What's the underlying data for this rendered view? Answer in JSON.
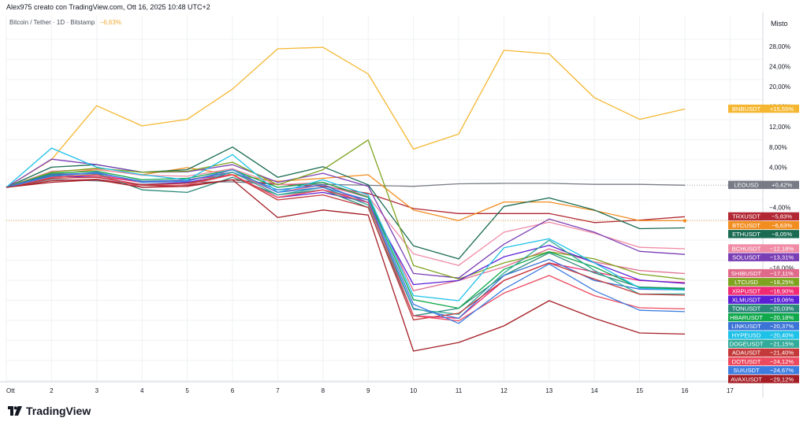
{
  "header": "Alex975 creato con TradingView.com, Ott 16, 2025 10:48 UTC+2",
  "legend": {
    "symbol": "Bitcoin / Tether · 1D · Bitstamp",
    "change": "−6,63%"
  },
  "axis_title": "Misto",
  "brand": "TradingView",
  "chart_data": {
    "type": "line",
    "x_labels": [
      "Ott",
      "2",
      "3",
      "4",
      "5",
      "6",
      "7",
      "8",
      "9",
      "10",
      "11",
      "12",
      "13",
      "14",
      "15",
      "16",
      "17"
    ],
    "x": [
      1,
      2,
      3,
      4,
      5,
      6,
      7,
      8,
      9,
      10,
      11,
      12,
      13,
      14,
      15,
      16
    ],
    "y_unit": "%",
    "ylim": [
      -33,
      33
    ],
    "y_ticks": [
      {
        "v": 28,
        "label": "28,00%"
      },
      {
        "v": 24,
        "label": "24,00%"
      },
      {
        "v": 20,
        "label": "20,00%"
      },
      {
        "v": 16,
        "label": "16,00%"
      },
      {
        "v": 12,
        "label": "12,00%"
      },
      {
        "v": 8,
        "label": "8,00%"
      },
      {
        "v": 4,
        "label": "4,00%"
      },
      {
        "v": -4,
        "label": "−4,00%"
      },
      {
        "v": -16,
        "label": "−16,00%"
      }
    ],
    "grid": true,
    "series": [
      {
        "name": "BNBUSDT",
        "label": "+15,55%",
        "color": "#f5b731",
        "values": [
          0,
          5.5,
          16.2,
          12.2,
          13.5,
          19.5,
          27.5,
          27.8,
          22.5,
          7.6,
          10.6,
          27.2,
          26.5,
          17.8,
          13.5,
          15.55
        ]
      },
      {
        "name": "LEOUSD",
        "label": "+0,42%",
        "color": "#787b86",
        "values": [
          0,
          1.6,
          1.3,
          0.6,
          1.0,
          1.1,
          0.6,
          0.6,
          0.4,
          0.2,
          0.7,
          0.8,
          0.8,
          0.6,
          0.6,
          0.42
        ]
      },
      {
        "name": "TRXUSDT",
        "label": "−5,83%",
        "color": "#b22833",
        "values": [
          0,
          1.3,
          1.6,
          0.4,
          0.4,
          1.5,
          0.6,
          0.2,
          -1.2,
          -4.2,
          -5.2,
          -5.2,
          -5.2,
          -7.0,
          -6.5,
          -5.83
        ]
      },
      {
        "name": "BTCUSDT",
        "label": "−6,63%",
        "color": "#f28d20",
        "values": [
          0,
          2.6,
          3.5,
          2.5,
          3.9,
          2.5,
          1.2,
          1.8,
          2.5,
          -4.5,
          -6.6,
          -2.9,
          -2.9,
          -4.6,
          -6.6,
          -6.63
        ]
      },
      {
        "name": "ETHUSDT",
        "label": "−8,05%",
        "color": "#1a6b52",
        "values": [
          0,
          4.0,
          4.5,
          3.0,
          3.5,
          8.0,
          2.0,
          4.1,
          0.5,
          -11.6,
          -14.2,
          -3.8,
          -2.1,
          -4.5,
          -8.2,
          -8.05
        ]
      },
      {
        "name": "BCHUSDT",
        "label": "−12,18%",
        "color": "#f08ba5",
        "values": [
          0,
          3.2,
          3.6,
          2.4,
          2.2,
          3.7,
          0.5,
          1.0,
          -1.8,
          -13.2,
          -15.5,
          -8.9,
          -6.9,
          -9.1,
          -11.9,
          -12.18
        ]
      },
      {
        "name": "SOLUSDT",
        "label": "−13,31%",
        "color": "#7b3fb5",
        "values": [
          0,
          5.6,
          4.5,
          3.0,
          3.1,
          4.5,
          1.0,
          2.8,
          0.2,
          -17.1,
          -18.0,
          -11.3,
          -6.3,
          -8.9,
          -12.7,
          -13.31
        ]
      },
      {
        "name": "SHIBUSDT",
        "label": "−17,11%",
        "color": "#e06a8a",
        "values": [
          0,
          2.5,
          2.2,
          1.0,
          1.5,
          3.0,
          -1.0,
          0.5,
          -2.0,
          -20.5,
          -18.5,
          -15.8,
          -12.2,
          -14.8,
          -16.5,
          -17.11
        ]
      },
      {
        "name": "LTCUSD",
        "label": "−18,25%",
        "color": "#7ea31f",
        "values": [
          0,
          3.0,
          3.8,
          3.0,
          3.2,
          5.0,
          0.5,
          3.5,
          9.4,
          -15.5,
          -18.2,
          -15.0,
          -12.8,
          -14.2,
          -17.2,
          -18.25
        ]
      },
      {
        "name": "XRPUSDT",
        "label": "−18,90%",
        "color": "#f02a73",
        "values": [
          0,
          2.0,
          2.5,
          1.0,
          1.5,
          2.5,
          -2.0,
          -0.5,
          -2.5,
          -25.5,
          -26.0,
          -18.5,
          -15.0,
          -16.8,
          -18.5,
          -18.9
        ]
      },
      {
        "name": "XLMUSDT",
        "label": "−19,06%",
        "color": "#5b1fd6",
        "values": [
          0,
          2.2,
          2.0,
          0.5,
          1.0,
          2.5,
          -2.0,
          -1.0,
          -3.0,
          -19.3,
          -18.5,
          -13.8,
          -11.5,
          -15.0,
          -18.4,
          -19.06
        ]
      },
      {
        "name": "TONUSDT",
        "label": "−20,03%",
        "color": "#2b8a7a",
        "values": [
          0,
          2.4,
          2.8,
          -0.5,
          -1.0,
          2.0,
          -1.5,
          -0.5,
          -4.0,
          -25.5,
          -24.0,
          -17.5,
          -13.0,
          -17.0,
          -19.8,
          -20.03
        ]
      },
      {
        "name": "HBARUSDT",
        "label": "−20,18%",
        "color": "#0fa84a",
        "values": [
          0,
          2.8,
          3.2,
          1.5,
          1.8,
          3.5,
          0.0,
          1.0,
          -2.0,
          -22.3,
          -24.0,
          -16.3,
          -12.8,
          -15.8,
          -19.9,
          -20.18
        ]
      },
      {
        "name": "LINKUSDT",
        "label": "−20,37%",
        "color": "#3b73d6",
        "values": [
          0,
          2.6,
          2.8,
          1.2,
          1.4,
          3.0,
          -0.5,
          0.5,
          -3.0,
          -24.0,
          -26.0,
          -17.5,
          -14.3,
          -18.5,
          -20.2,
          -20.37
        ]
      },
      {
        "name": "HYPEUSD",
        "label": "−20,40%",
        "color": "#1ec1e8",
        "values": [
          0,
          7.8,
          4.0,
          2.5,
          1.5,
          6.5,
          -1.0,
          1.5,
          -1.5,
          -21.5,
          -22.5,
          -12.0,
          -10.2,
          -15.0,
          -20.0,
          -20.4
        ]
      },
      {
        "name": "DOGEUSDT",
        "label": "−21,15%",
        "color": "#31ab9a",
        "values": [
          0,
          2.0,
          2.6,
          0.0,
          0.5,
          3.0,
          -1.5,
          0.0,
          -3.5,
          -24.2,
          -25.2,
          -17.0,
          -10.5,
          -16.5,
          -21.2,
          -21.15
        ]
      },
      {
        "name": "ADAUSDT",
        "label": "−21,40%",
        "color": "#c43a3a",
        "values": [
          0,
          1.8,
          2.0,
          0.5,
          0.8,
          2.5,
          -2.5,
          -1.5,
          -4.0,
          -26.3,
          -25.0,
          -18.5,
          -15.0,
          -18.2,
          -21.2,
          -21.4
        ]
      },
      {
        "name": "DOTUSDT",
        "label": "−24,12%",
        "color": "#ec4a5f",
        "values": [
          0,
          2.0,
          2.5,
          0.0,
          0.5,
          2.5,
          -2.0,
          -0.5,
          -3.0,
          -25.5,
          -26.5,
          -21.0,
          -17.5,
          -21.5,
          -23.9,
          -24.12
        ]
      },
      {
        "name": "SUIUSDT",
        "label": "−24,67%",
        "color": "#3d7de0",
        "values": [
          0,
          2.2,
          3.0,
          1.0,
          1.2,
          3.5,
          -1.0,
          0.0,
          -2.5,
          -23.2,
          -27.0,
          -20.2,
          -15.2,
          -20.5,
          -24.4,
          -24.67
        ]
      },
      {
        "name": "AVAXUSDT",
        "label": "−29,12%",
        "color": "#a51e25",
        "values": [
          0,
          1.0,
          1.5,
          0.0,
          0.2,
          1.5,
          -6.0,
          -4.5,
          -5.5,
          -32.5,
          -30.8,
          -27.5,
          -22.5,
          -26.0,
          -28.9,
          -29.12
        ]
      }
    ]
  }
}
